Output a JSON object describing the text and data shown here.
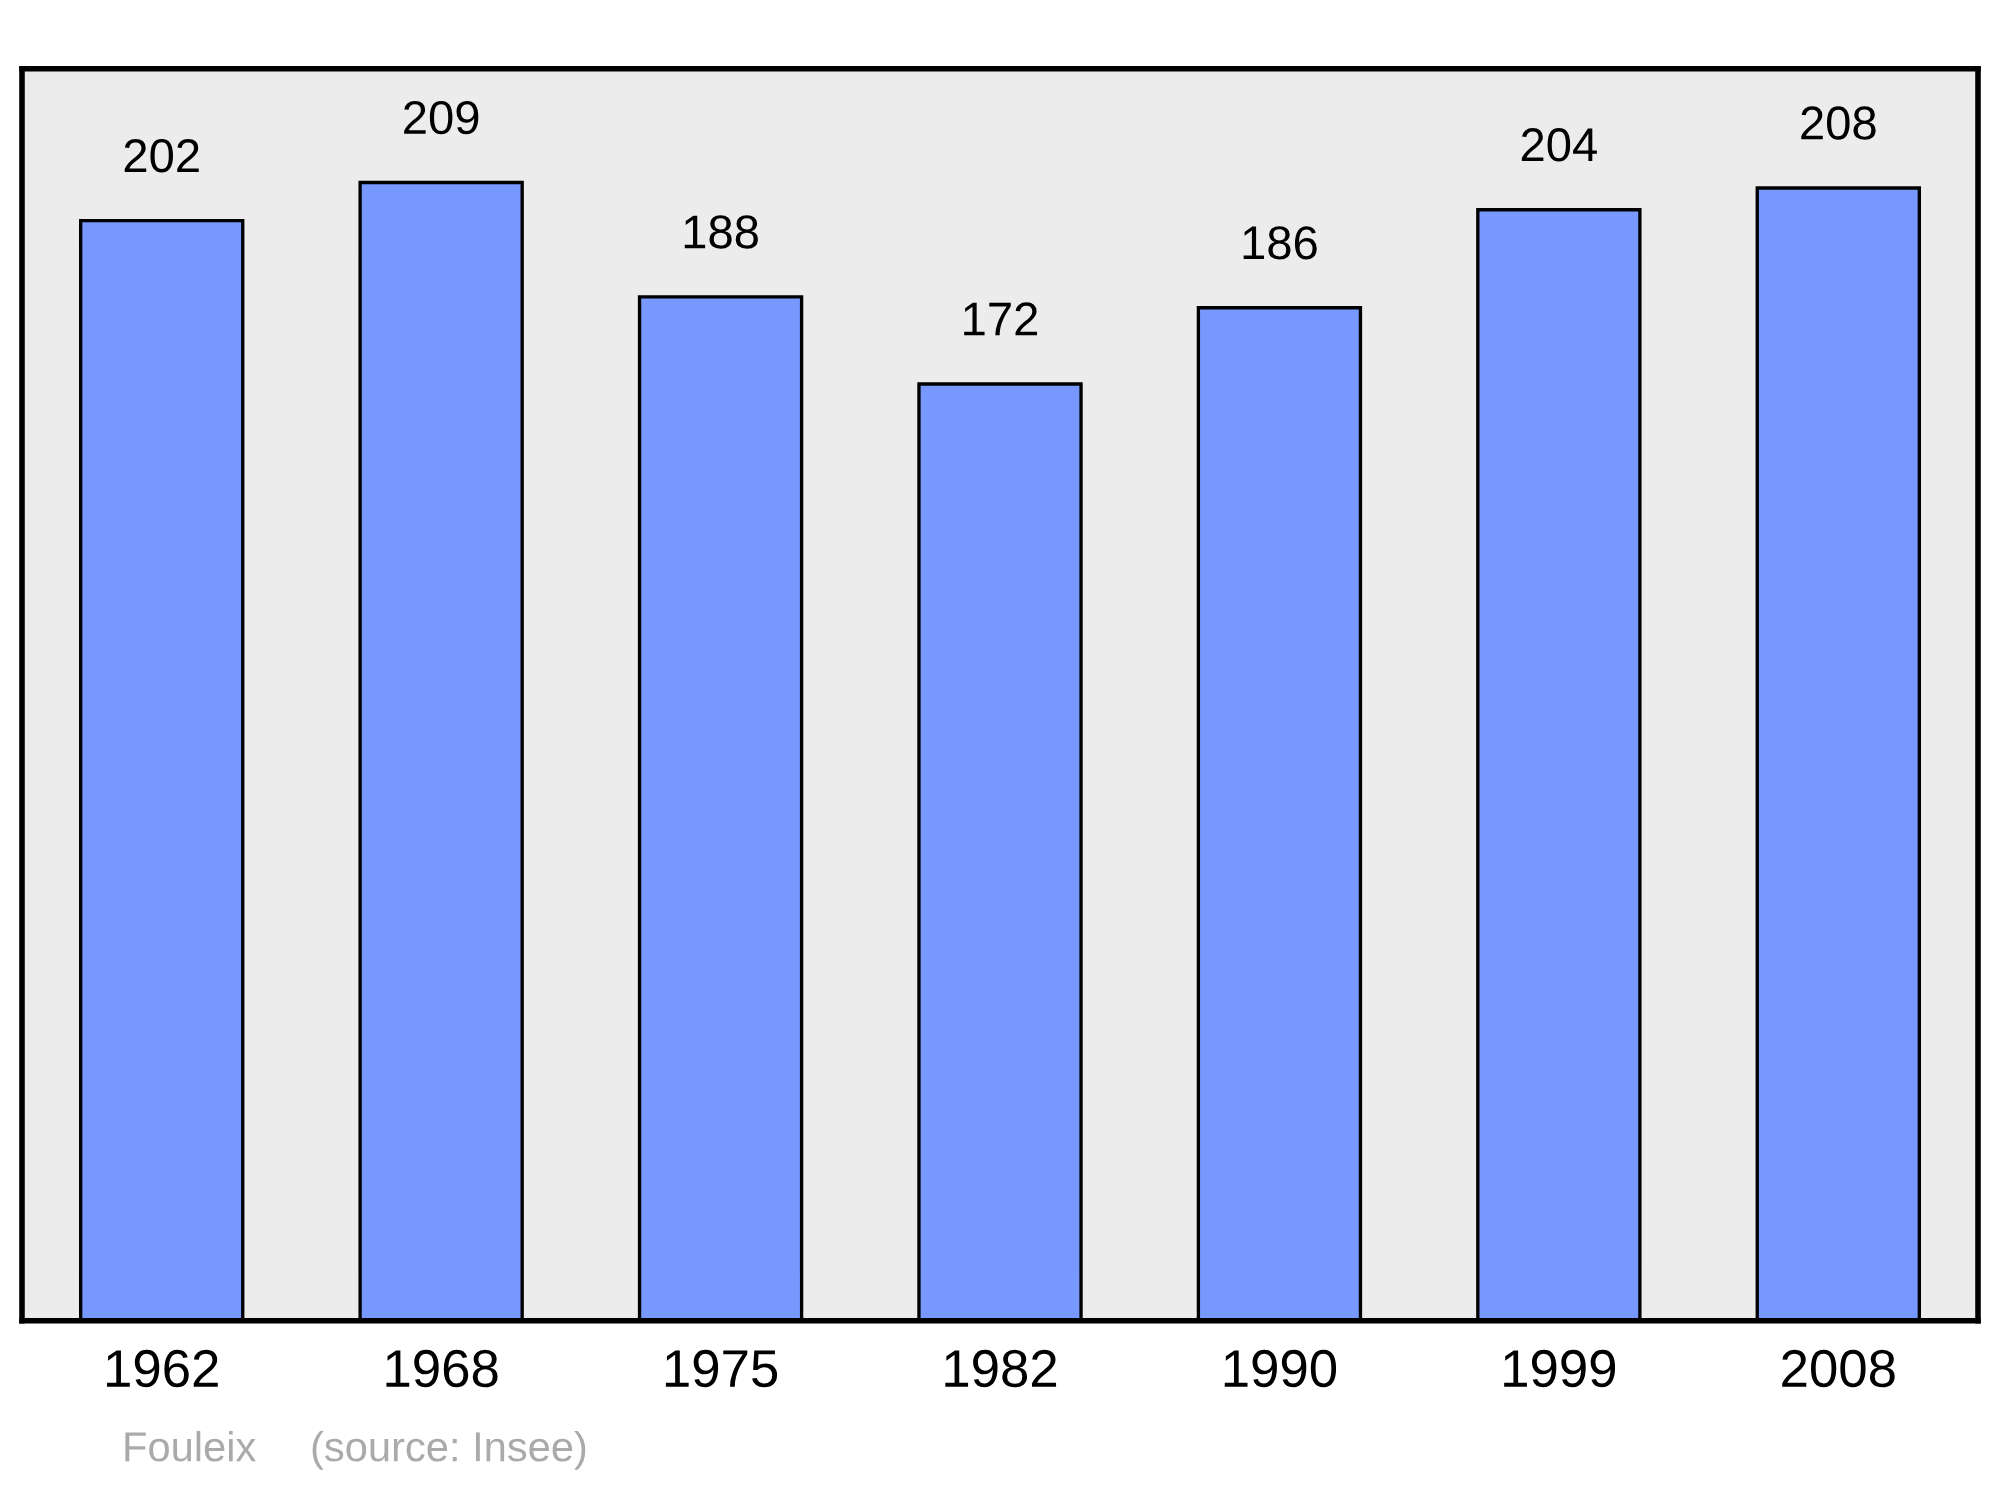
{
  "chart_data": {
    "type": "bar",
    "categories": [
      "1962",
      "1968",
      "1975",
      "1982",
      "1990",
      "1999",
      "2008"
    ],
    "values": [
      202,
      209,
      188,
      172,
      186,
      204,
      208
    ],
    "color": "#7799ff",
    "data_labels": true,
    "grid": false,
    "legend": false,
    "tick_labels": "x",
    "annotations": [
      "Fouleix",
      "(source: Insee)"
    ]
  }
}
